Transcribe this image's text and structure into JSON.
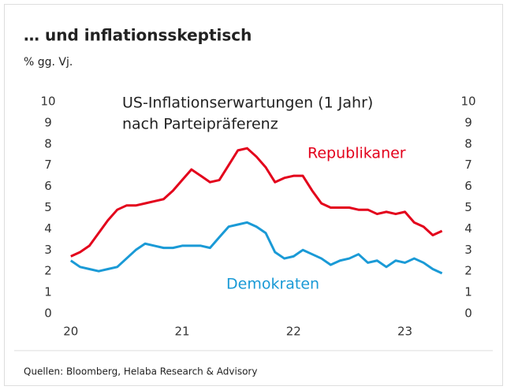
{
  "page_title": "… und inflationsskeptisch",
  "unit": "% gg. Vj.",
  "source": "Quellen: Bloomberg, Helaba Research & Advisory",
  "chart_data": {
    "type": "line",
    "title_lines": [
      "US-Inflationserwartungen (1 Jahr)",
      "nach Parteipräferenz"
    ],
    "x": [
      20,
      20.083,
      20.167,
      20.25,
      20.333,
      20.417,
      20.5,
      20.583,
      20.667,
      20.75,
      20.833,
      20.917,
      21,
      21.083,
      21.167,
      21.25,
      21.333,
      21.417,
      21.5,
      21.583,
      21.667,
      21.75,
      21.833,
      21.917,
      22,
      22.083,
      22.167,
      22.25,
      22.333,
      22.417,
      22.5,
      22.583,
      22.667,
      22.75,
      22.833,
      22.917,
      23,
      23.083,
      23.167,
      23.25,
      23.333
    ],
    "series": [
      {
        "name": "Republikaner",
        "color": "#e3001b",
        "values": [
          2.7,
          2.9,
          3.2,
          3.8,
          4.4,
          4.9,
          5.1,
          5.1,
          5.2,
          5.3,
          5.4,
          5.8,
          6.3,
          6.8,
          6.5,
          6.2,
          6.3,
          7.0,
          7.7,
          7.8,
          7.4,
          6.9,
          6.2,
          6.4,
          6.5,
          6.5,
          5.8,
          5.2,
          5.0,
          5.0,
          5.0,
          4.9,
          4.9,
          4.7,
          4.8,
          4.7,
          4.8,
          4.3,
          4.1,
          3.7,
          3.9
        ]
      },
      {
        "name": "Demokraten",
        "color": "#1a9ad6",
        "values": [
          2.5,
          2.2,
          2.1,
          2.0,
          2.1,
          2.2,
          2.6,
          3.0,
          3.3,
          3.2,
          3.1,
          3.1,
          3.2,
          3.2,
          3.2,
          3.1,
          3.6,
          4.1,
          4.2,
          4.3,
          4.1,
          3.8,
          2.9,
          2.6,
          2.7,
          3.0,
          2.8,
          2.6,
          2.3,
          2.5,
          2.6,
          2.8,
          2.4,
          2.5,
          2.2,
          2.5,
          2.4,
          2.6,
          2.4,
          2.1,
          1.9
        ]
      }
    ],
    "xlim": [
      19.98,
      23.35
    ],
    "xticks": [
      20,
      21,
      22,
      23
    ],
    "ylim": [
      0,
      10
    ],
    "yticks": [
      0,
      1,
      2,
      3,
      4,
      5,
      6,
      7,
      8,
      9,
      10
    ],
    "y2lim": [
      0,
      10
    ],
    "y2ticks": [
      0,
      1,
      2,
      3,
      4,
      5,
      6,
      7,
      8,
      9,
      10
    ],
    "grid": false
  }
}
